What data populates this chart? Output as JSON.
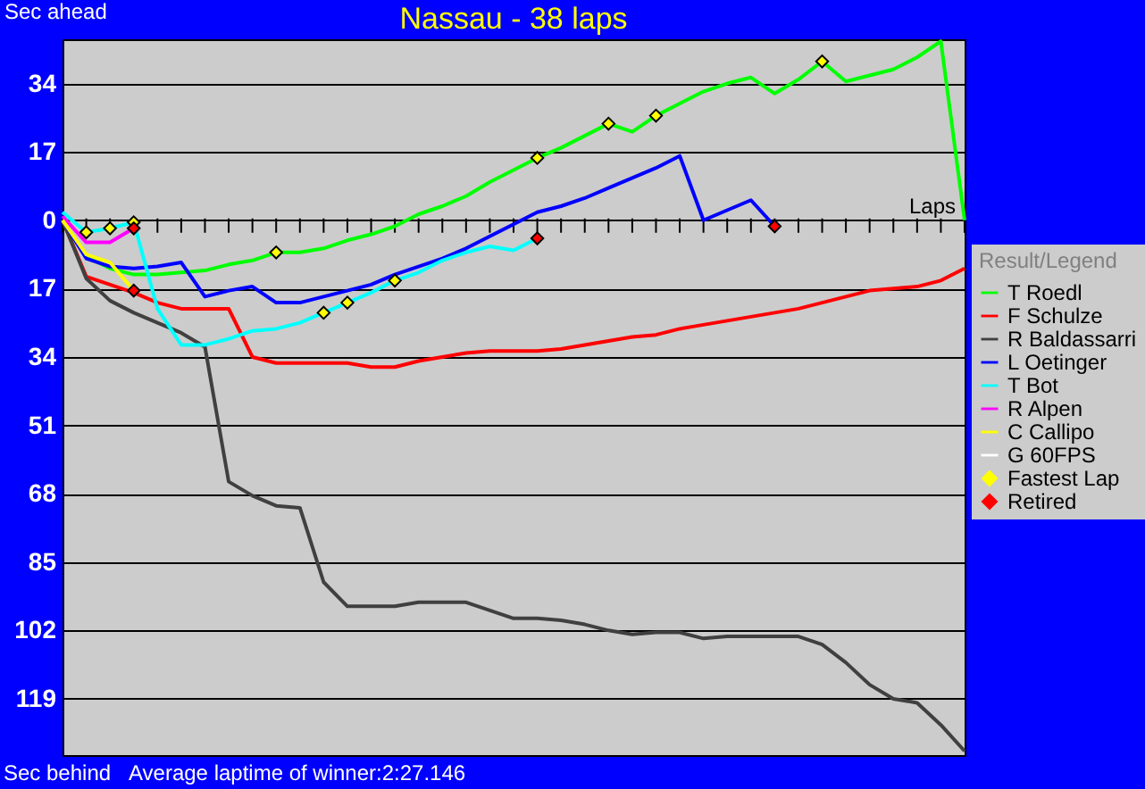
{
  "chart_data": {
    "type": "line",
    "title": "Nassau - 38 laps",
    "ylabel": "Sec ahead",
    "xlabel": "Laps",
    "legend_title": "Result/Legend",
    "legend": "right",
    "grid": "y",
    "tick_labels": "y",
    "line_style": "solid",
    "annotations": [
      "Sec behind",
      "Average laptime of winner:2:27.146"
    ],
    "ylim": [
      -133,
      45
    ],
    "yticks": [
      {
        "value": 34,
        "label": "34"
      },
      {
        "value": 17,
        "label": "17"
      },
      {
        "value": 0,
        "label": "0"
      },
      {
        "value": -17,
        "label": "17"
      },
      {
        "value": -34,
        "label": "34"
      },
      {
        "value": -51,
        "label": "51"
      },
      {
        "value": -68,
        "label": "68"
      },
      {
        "value": -85,
        "label": "85"
      },
      {
        "value": -102,
        "label": "102"
      },
      {
        "value": -119,
        "label": "119"
      }
    ],
    "categories": [
      null,
      null,
      null,
      null,
      null,
      null,
      null,
      null,
      null,
      null,
      null,
      null,
      null,
      null,
      null,
      null,
      null,
      null,
      null,
      null,
      null,
      null,
      null,
      null,
      null,
      null,
      null,
      null,
      null,
      null,
      null,
      null,
      null,
      null,
      null,
      null,
      null,
      null,
      null
    ],
    "series": [
      {
        "name": "T Roedl",
        "color": "#00ff00",
        "values": [
          0,
          -9,
          -12,
          -13.5,
          -13.5,
          -13,
          -12.5,
          -11,
          -10,
          -8,
          -8,
          -7,
          -5,
          -3.5,
          -1.5,
          1.5,
          3.5,
          6,
          9.5,
          12.5,
          15.5,
          18,
          21,
          24,
          22,
          26,
          29,
          32,
          34,
          35.5,
          31.5,
          35,
          39.5,
          34.5,
          36,
          37.5,
          40.5,
          44.5,
          0
        ]
      },
      {
        "name": "F Schulze",
        "color": "#ff0000",
        "values": [
          0,
          -14,
          -16,
          -18,
          -20.5,
          -22,
          -22,
          -22,
          -34,
          -35.5,
          -35.5,
          -35.5,
          -35.5,
          -36.5,
          -36.5,
          -35,
          -34,
          -33,
          -32.5,
          -32.5,
          -32.5,
          -32,
          -31,
          -30,
          -29,
          -28.5,
          -27,
          -26,
          -25,
          -24,
          -23,
          -22,
          -20.5,
          -19,
          -17.5,
          -17,
          -16.5,
          -15,
          -12
        ]
      },
      {
        "name": "R Baldassarri",
        "color": "#404040",
        "values": [
          0,
          -14.5,
          -20,
          -23,
          -25.5,
          -28,
          -31.5,
          -65,
          -68.5,
          -71,
          -71.5,
          -90,
          -96,
          -96,
          -96,
          -95,
          -95,
          -95,
          -97,
          -99,
          -99,
          -99.5,
          -100.5,
          -102,
          -103,
          -102.5,
          -102.5,
          -104,
          -103.5,
          -103.5,
          -103.5,
          -103.5,
          -105.5,
          -110,
          -115.5,
          -119,
          -120,
          -125.5,
          -132
        ]
      },
      {
        "name": "L Oetinger",
        "color": "#0000ff",
        "values": [
          0,
          -9.5,
          -11.5,
          -12,
          -11.5,
          -10.5,
          -19,
          -17.5,
          -16.5,
          -20.5,
          -20.5,
          -19,
          -17.5,
          -16,
          -13.5,
          -11.5,
          -9.5,
          -7,
          -4,
          -1,
          2,
          3.5,
          5.5,
          8,
          10.5,
          13,
          16,
          0,
          2.5,
          5,
          -1.5,
          null,
          null,
          null,
          null,
          null,
          null,
          null,
          null
        ]
      },
      {
        "name": "T Bot",
        "color": "#00ffff",
        "values": [
          2,
          -3,
          -2,
          -0.5,
          -22,
          -31,
          -31,
          -29.5,
          -27.5,
          -27,
          -25.5,
          -23,
          -20.5,
          -18,
          -15,
          -13,
          -10,
          -8,
          -6.5,
          -7.5,
          -4.5,
          null,
          null,
          null,
          null,
          null,
          null,
          null,
          null,
          null,
          null,
          null,
          null,
          null,
          null,
          null,
          null,
          null,
          null
        ]
      },
      {
        "name": "R Alpen",
        "color": "#ff00ff",
        "values": [
          1,
          -5.5,
          -5.5,
          -2,
          null,
          null,
          null,
          null,
          null,
          null,
          null,
          null,
          null,
          null,
          null,
          null,
          null,
          null,
          null,
          null,
          null,
          null,
          null,
          null,
          null,
          null,
          null,
          null,
          null,
          null,
          null,
          null,
          null,
          null,
          null,
          null,
          null,
          null,
          null
        ]
      },
      {
        "name": "C Callipo",
        "color": "#ffff00",
        "values": [
          0,
          -8.5,
          -10.5,
          -17.5,
          null,
          null,
          null,
          null,
          null,
          null,
          null,
          null,
          null,
          null,
          null,
          null,
          null,
          null,
          null,
          null,
          null,
          null,
          null,
          null,
          null,
          null,
          null,
          null,
          null,
          null,
          null,
          null,
          null,
          null,
          null,
          null,
          null,
          null,
          null
        ]
      },
      {
        "name": "G 60FPS",
        "color": "#ffffff",
        "values": [
          null,
          null,
          null,
          null,
          null,
          null,
          null,
          null,
          null,
          null,
          null,
          null,
          null,
          null,
          null,
          null,
          null,
          null,
          null,
          null,
          null,
          null,
          null,
          null,
          null,
          null,
          null,
          null,
          null,
          null,
          null,
          null,
          null,
          null,
          null,
          null,
          null,
          null,
          null
        ]
      },
      {
        "name": "Fastest Lap",
        "type": "scatter",
        "marker": "diamond",
        "color": "#ffff00",
        "values": [
          null,
          -3,
          -2,
          -0.5,
          null,
          null,
          null,
          null,
          null,
          -8,
          null,
          -23,
          -20.5,
          null,
          -15,
          null,
          null,
          null,
          null,
          null,
          15.5,
          null,
          null,
          24,
          null,
          26,
          null,
          null,
          null,
          null,
          null,
          null,
          39.5,
          null,
          null,
          null,
          null,
          null,
          null
        ]
      },
      {
        "name": "Retired",
        "type": "scatter",
        "marker": "diamond",
        "color": "#ff0000",
        "values": [
          null,
          null,
          null,
          -2,
          null,
          null,
          null,
          null,
          null,
          null,
          null,
          null,
          null,
          null,
          null,
          null,
          null,
          null,
          null,
          null,
          -4.5,
          null,
          null,
          null,
          null,
          null,
          null,
          null,
          null,
          null,
          -1.5,
          null,
          null,
          null,
          null,
          null,
          null,
          null,
          null
        ]
      },
      {
        "type": "scatter",
        "marker": "diamond",
        "color": "#ff0000",
        "values": [
          null,
          null,
          null,
          -17.5,
          null,
          null,
          null,
          null,
          null,
          null,
          null,
          null,
          null,
          null,
          null,
          null,
          null,
          null,
          null,
          null,
          null,
          null,
          null,
          null,
          null,
          null,
          null,
          null,
          null,
          null,
          null,
          null,
          null,
          null,
          null,
          null,
          null,
          null,
          null
        ]
      }
    ]
  }
}
